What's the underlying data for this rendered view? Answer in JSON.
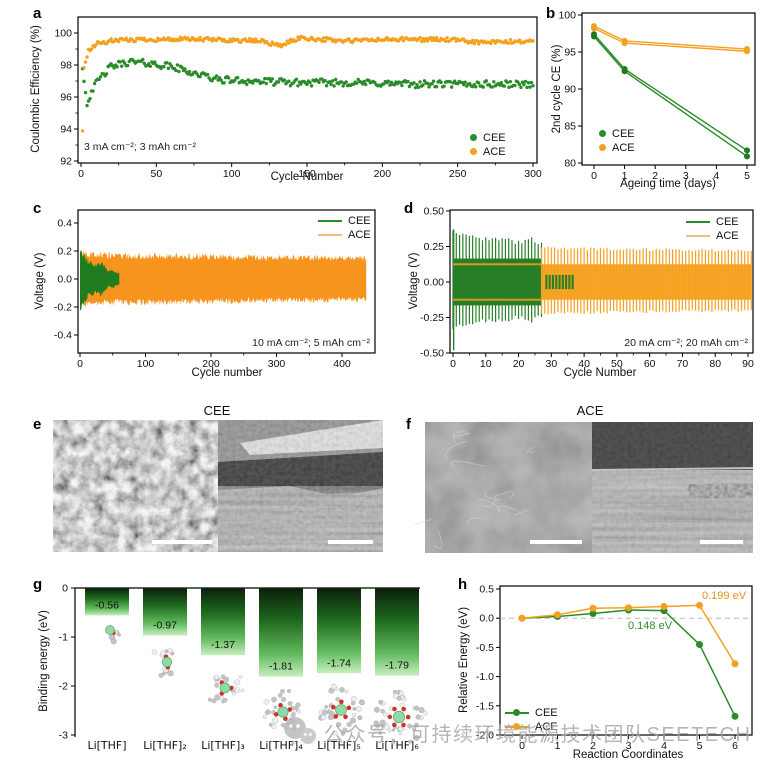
{
  "panels": {
    "a": {
      "label": "a",
      "xlabel": "Cycle Number",
      "ylabel": "Coulombic Efficiency (%)",
      "condition": "3 mA cm⁻²; 3 mAh cm⁻²",
      "legend": [
        {
          "label": "CEE"
        },
        {
          "label": "ACE"
        }
      ]
    },
    "b": {
      "label": "b",
      "xlabel": "Ageing time (days)",
      "ylabel": "2nd cycle CE (%)",
      "legend": [
        {
          "label": "CEE"
        },
        {
          "label": "ACE"
        }
      ]
    },
    "c": {
      "label": "c",
      "xlabel": "Cycle number",
      "ylabel": "Voltage (V)",
      "condition": "10 mA cm⁻²; 5 mAh cm⁻²",
      "legend": [
        {
          "label": "CEE"
        },
        {
          "label": "ACE"
        }
      ]
    },
    "d": {
      "label": "d",
      "xlabel": "Cycle Number",
      "ylabel": "Voltage (V)",
      "condition": "20 mA cm⁻²; 20 mAh cm⁻²",
      "legend": [
        {
          "label": "CEE"
        },
        {
          "label": "ACE"
        }
      ]
    },
    "e": {
      "label": "e",
      "title": "CEE"
    },
    "f": {
      "label": "f",
      "title": "ACE"
    },
    "g": {
      "label": "g",
      "ylabel": "Binding energy (eV)"
    },
    "h": {
      "label": "h",
      "xlabel": "Reaction Coordinates",
      "ylabel": "Relative Energy (eV)",
      "legend": [
        {
          "label": "CEE"
        },
        {
          "label": "ACE"
        }
      ]
    }
  },
  "colors": {
    "cee": "#2a8b2a",
    "cee_dark": "#1f7a1f",
    "ace": "#f5a01e",
    "ace_band": "#f7941e",
    "ace_legend_line": "#e9c07e",
    "dash": "#bbbbbb",
    "annotation_orange": "#e7921c",
    "annotation_green": "#2f8b2f",
    "bar_top": "#0b1f0b",
    "bar_mid": "#1d661d",
    "bar_light": "#63bb5f",
    "bar_pale": "#c7efbe"
  },
  "chart_data": [
    {
      "id": "a",
      "type": "scatter",
      "title": "",
      "xlabel": "Cycle Number",
      "ylabel": "Coulombic Efficiency (%)",
      "xlim": [
        0,
        300
      ],
      "ylim": [
        92,
        101
      ],
      "xticks": [
        0,
        50,
        100,
        150,
        200,
        250,
        300
      ],
      "xtick_labels": [
        "0",
        "50",
        "100",
        "150",
        "200",
        "250",
        "300"
      ],
      "yticks": [
        92,
        94,
        96,
        98,
        100
      ],
      "ytick_labels": [
        "92",
        "94",
        "96",
        "98",
        "100"
      ],
      "annotation": "3 mA cm⁻²; 3 mAh cm⁻²",
      "legend_position": "bottom-right",
      "series": [
        {
          "name": "CEE",
          "cycles": [
            1,
            300
          ],
          "jitter": 0.22,
          "trend": [
            [
              1,
              97.8
            ],
            [
              4,
              95.5
            ],
            [
              7,
              96.4
            ],
            [
              12,
              97.1
            ],
            [
              20,
              97.9
            ],
            [
              32,
              98.2
            ],
            [
              45,
              98.1
            ],
            [
              60,
              97.9
            ],
            [
              75,
              97.5
            ],
            [
              90,
              97.1
            ],
            [
              110,
              97.0
            ],
            [
              140,
              96.9
            ],
            [
              180,
              96.9
            ],
            [
              220,
              96.8
            ],
            [
              260,
              96.8
            ],
            [
              300,
              96.8
            ]
          ]
        },
        {
          "name": "ACE",
          "cycles": [
            1,
            300
          ],
          "jitter": 0.13,
          "trend": [
            [
              1,
              93.9
            ],
            [
              2,
              97.8
            ],
            [
              5,
              98.9
            ],
            [
              10,
              99.3
            ],
            [
              20,
              99.5
            ],
            [
              40,
              99.6
            ],
            [
              80,
              99.6
            ],
            [
              120,
              99.5
            ],
            [
              132,
              99.2
            ],
            [
              145,
              99.7
            ],
            [
              175,
              99.5
            ],
            [
              205,
              99.6
            ],
            [
              240,
              99.6
            ],
            [
              268,
              99.4
            ],
            [
              300,
              99.5
            ]
          ]
        }
      ]
    },
    {
      "id": "b",
      "type": "line",
      "title": "",
      "xlabel": "Ageing time (days)",
      "ylabel": "2nd cycle CE (%)",
      "xlim": [
        0,
        5
      ],
      "ylim": [
        80,
        100
      ],
      "xticks": [
        0,
        1,
        2,
        3,
        4,
        5
      ],
      "xtick_labels": [
        "0",
        "1",
        "2",
        "3",
        "4",
        "5"
      ],
      "yticks": [
        80,
        85,
        90,
        95,
        100
      ],
      "ytick_labels": [
        "80",
        "85",
        "90",
        "95",
        "100"
      ],
      "x": [
        0,
        1,
        5
      ],
      "legend_position": "bottom-left",
      "series": [
        {
          "name": "CEE",
          "lines": [
            [
              97.4,
              92.7,
              81.7
            ],
            [
              97.1,
              92.4,
              80.9
            ]
          ]
        },
        {
          "name": "ACE",
          "lines": [
            [
              98.5,
              96.5,
              95.4
            ],
            [
              98.2,
              96.2,
              95.1
            ]
          ]
        }
      ]
    },
    {
      "id": "c",
      "type": "band",
      "title": "",
      "xlabel": "Cycle number",
      "ylabel": "Voltage (V)",
      "xlim": [
        0,
        450
      ],
      "ylim": [
        -0.5,
        0.5
      ],
      "xticks": [
        0,
        100,
        200,
        300,
        400
      ],
      "xtick_labels": [
        "0",
        "100",
        "200",
        "300",
        "400"
      ],
      "yticks": [
        0.4,
        0.2,
        0.0,
        -0.2,
        -0.4
      ],
      "ytick_labels": [
        "0.4",
        "0.2",
        "0.0",
        "-0.2",
        "-0.4"
      ],
      "annotation": "10 mA cm⁻²; 5 mAh cm⁻²",
      "legend_position": "top-right",
      "series": [
        {
          "name": "ACE",
          "range": [
            4,
            437
          ],
          "envelope": [
            [
              4,
              0.185
            ],
            [
              20,
              0.17
            ],
            [
              60,
              0.165
            ],
            [
              120,
              0.163
            ],
            [
              200,
              0.158
            ],
            [
              280,
              0.153
            ],
            [
              360,
              0.15
            ],
            [
              437,
              0.145
            ]
          ]
        },
        {
          "name": "CEE",
          "range": [
            0,
            60
          ],
          "envelope": [
            [
              0,
              0.21
            ],
            [
              3,
              0.19
            ],
            [
              6,
              0.17
            ],
            [
              10,
              0.135
            ],
            [
              14,
              0.1
            ],
            [
              18,
              0.125
            ],
            [
              22,
              0.095
            ],
            [
              28,
              0.105
            ],
            [
              33,
              0.12
            ],
            [
              38,
              0.085
            ],
            [
              43,
              0.055
            ],
            [
              50,
              0.06
            ],
            [
              55,
              0.045
            ],
            [
              60,
              0.04
            ]
          ]
        }
      ]
    },
    {
      "id": "d",
      "type": "spikes",
      "title": "",
      "xlabel": "Cycle Number",
      "ylabel": "Voltage (V)",
      "xlim": [
        0,
        92
      ],
      "ylim": [
        -0.5,
        0.5
      ],
      "xticks": [
        0,
        10,
        20,
        30,
        40,
        50,
        60,
        70,
        80,
        90
      ],
      "xtick_labels": [
        "0",
        "10",
        "20",
        "30",
        "40",
        "50",
        "60",
        "70",
        "80",
        "90"
      ],
      "yticks": [
        0.5,
        0.25,
        0.0,
        -0.25,
        -0.5
      ],
      "ytick_labels": [
        "0.50",
        "0.25",
        "0.00",
        "-0.25",
        "-0.50"
      ],
      "annotation": "20 mA cm⁻²; 20 mAh cm⁻²",
      "legend_position": "top-right",
      "series": [
        {
          "name": "ACE",
          "spike_range": [
            27,
            91
          ],
          "upper": [
            [
              27,
              0.24
            ],
            [
              50,
              0.23
            ],
            [
              91,
              0.22
            ]
          ],
          "core": 0.125,
          "core_range": [
            0,
            91
          ]
        },
        {
          "name": "CEE",
          "spike_range": [
            0,
            27
          ],
          "upper": [
            [
              0,
              0.37
            ],
            [
              4,
              0.32
            ],
            [
              10,
              0.3
            ],
            [
              16,
              0.3
            ],
            [
              21,
              0.27
            ],
            [
              23,
              0.31
            ],
            [
              27,
              0.27
            ]
          ],
          "core": 0.165,
          "core_range": [
            0,
            27
          ],
          "tail_range": [
            28,
            37
          ],
          "tail_amp": 0.05,
          "init_spike": [
            -0.48,
            0.37
          ]
        }
      ]
    },
    {
      "id": "g",
      "type": "bar",
      "title": "",
      "xlabel": "",
      "ylabel": "Binding energy (eV)",
      "categories": [
        "Li[THF]",
        "Li[THF]₂",
        "Li[THF]₃",
        "Li[THF]₄",
        "Li[THF]₅",
        "Li[THF]₆"
      ],
      "values": [
        -0.56,
        -0.97,
        -1.37,
        -1.81,
        -1.74,
        -1.79
      ],
      "value_labels": [
        "-0.56",
        "-0.97",
        "-1.37",
        "-1.81",
        "-1.74",
        "-1.79"
      ],
      "ylim": [
        -3,
        0
      ],
      "yticks": [
        0,
        -1,
        -2,
        -3
      ],
      "ytick_labels": [
        "0",
        "-1",
        "-2",
        "-3"
      ],
      "molecule_thf_counts": [
        1,
        2,
        3,
        4,
        5,
        6
      ]
    },
    {
      "id": "h",
      "type": "line",
      "title": "",
      "xlabel": "Reaction Coordinates",
      "ylabel": "Relative Energy (eV)",
      "xlim": [
        0,
        6
      ],
      "ylim": [
        -2.0,
        0.5
      ],
      "xticks": [
        0,
        1,
        2,
        3,
        4,
        5,
        6
      ],
      "xtick_labels": [
        "0",
        "1",
        "2",
        "3",
        "4",
        "5",
        "6"
      ],
      "yticks": [
        0.5,
        0.0,
        -0.5,
        -1.0,
        -1.5,
        -2.0
      ],
      "ytick_labels": [
        "0.5",
        "0.0",
        "-0.5",
        "-1.0",
        "-1.5",
        "-2.0"
      ],
      "zero_line": true,
      "legend_position": "bottom-left",
      "x": [
        0,
        1,
        2,
        3,
        4,
        5,
        6
      ],
      "series": [
        {
          "name": "CEE",
          "values": [
            0,
            0.03,
            0.08,
            0.14,
            0.13,
            -0.45,
            -1.68
          ],
          "barrier": "0.148 eV"
        },
        {
          "name": "ACE",
          "values": [
            0,
            0.06,
            0.17,
            0.18,
            0.2,
            0.22,
            -0.78
          ],
          "barrier": "0.199 eV"
        }
      ]
    }
  ],
  "watermark": {
    "text": "公众号：可持续环境能源技术团队SEETECH"
  }
}
